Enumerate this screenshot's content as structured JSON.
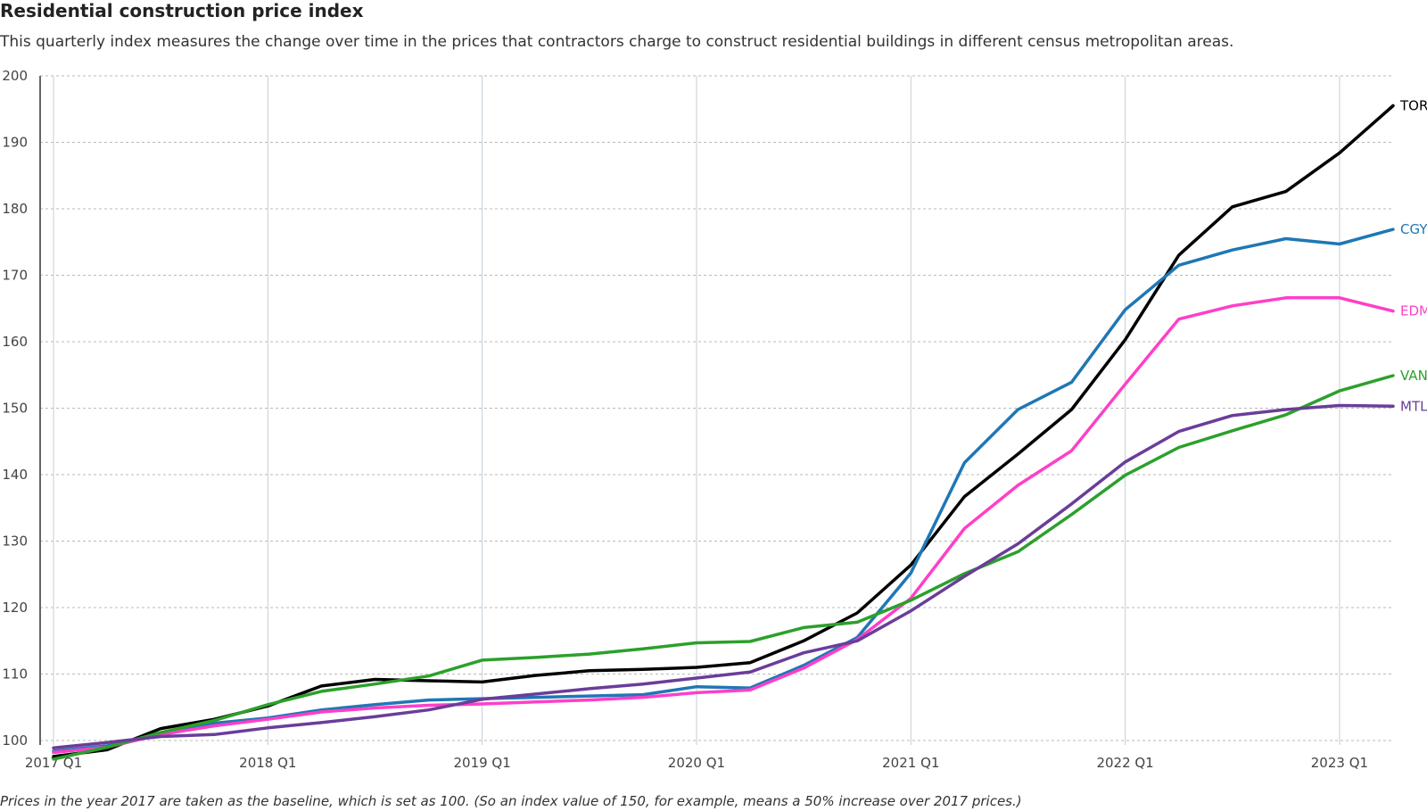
{
  "header": {
    "title": "Residential construction price index",
    "subtitle": "This quarterly index measures the change over time in the prices that contractors charge to construct residential buildings in different census metropolitan areas."
  },
  "footer": {
    "note": "Prices in the year 2017 are taken as the baseline, which is set as 100. (So an index value of 150, for example, means a 50% increase over 2017 prices.)"
  },
  "chart_data": {
    "type": "line",
    "title": "Residential construction price index",
    "xlabel": "",
    "ylabel": "",
    "ylim": [
      100,
      200
    ],
    "y_ticks": [
      100,
      110,
      120,
      130,
      140,
      150,
      160,
      170,
      180,
      190,
      200
    ],
    "x_ticks": [
      "2017 Q1",
      "2018 Q1",
      "2019 Q1",
      "2020 Q1",
      "2021 Q1",
      "2022 Q1",
      "2023 Q1"
    ],
    "x": [
      "2017 Q1",
      "2017 Q2",
      "2017 Q3",
      "2017 Q4",
      "2018 Q1",
      "2018 Q2",
      "2018 Q3",
      "2018 Q4",
      "2019 Q1",
      "2019 Q2",
      "2019 Q3",
      "2019 Q4",
      "2020 Q1",
      "2020 Q2",
      "2020 Q3",
      "2020 Q4",
      "2021 Q1",
      "2021 Q2",
      "2021 Q3",
      "2021 Q4",
      "2022 Q1",
      "2022 Q2",
      "2022 Q3",
      "2022 Q4",
      "2023 Q1",
      "2023 Q2"
    ],
    "grid": true,
    "legend": "direct labels at right end",
    "series": [
      {
        "name": "TOR",
        "color": "#000000",
        "values": [
          97.6,
          98.6,
          101.8,
          103.2,
          105.2,
          108.2,
          109.2,
          109.0,
          108.8,
          109.8,
          110.5,
          110.7,
          111.0,
          111.7,
          115.0,
          119.2,
          126.4,
          136.7,
          143.1,
          149.8,
          160.3,
          173.0,
          180.3,
          182.6,
          188.4,
          195.5
        ]
      },
      {
        "name": "CGY",
        "color": "#1f77b4",
        "values": [
          98.4,
          99.2,
          101.0,
          102.6,
          103.4,
          104.6,
          105.4,
          106.1,
          106.3,
          106.5,
          106.7,
          106.9,
          108.1,
          107.9,
          111.3,
          115.5,
          125.2,
          141.8,
          149.8,
          153.9,
          164.8,
          171.5,
          173.8,
          175.5,
          174.7,
          176.9
        ]
      },
      {
        "name": "EDM",
        "color": "#ff3fc8",
        "values": [
          98.2,
          99.0,
          100.9,
          102.2,
          103.2,
          104.3,
          104.9,
          105.3,
          105.5,
          105.8,
          106.1,
          106.5,
          107.2,
          107.6,
          110.9,
          115.2,
          121.4,
          131.9,
          138.4,
          143.6,
          153.6,
          163.4,
          165.4,
          166.6,
          166.6,
          164.6
        ]
      },
      {
        "name": "VAN",
        "color": "#2ca02c",
        "values": [
          97.2,
          99.0,
          101.2,
          103.0,
          105.4,
          107.4,
          108.5,
          109.7,
          112.1,
          112.5,
          113.0,
          113.8,
          114.7,
          114.9,
          117.0,
          117.8,
          121.1,
          125.1,
          128.4,
          134.0,
          139.9,
          144.1,
          146.6,
          149.0,
          152.6,
          154.9
        ]
      },
      {
        "name": "MTL",
        "color": "#6a3d9a",
        "values": [
          98.9,
          99.7,
          100.6,
          100.9,
          101.9,
          102.7,
          103.6,
          104.6,
          106.2,
          107.0,
          107.8,
          108.5,
          109.4,
          110.3,
          113.2,
          115.0,
          119.5,
          124.7,
          129.6,
          135.6,
          141.9,
          146.5,
          148.9,
          149.8,
          150.4,
          150.3
        ]
      }
    ]
  }
}
